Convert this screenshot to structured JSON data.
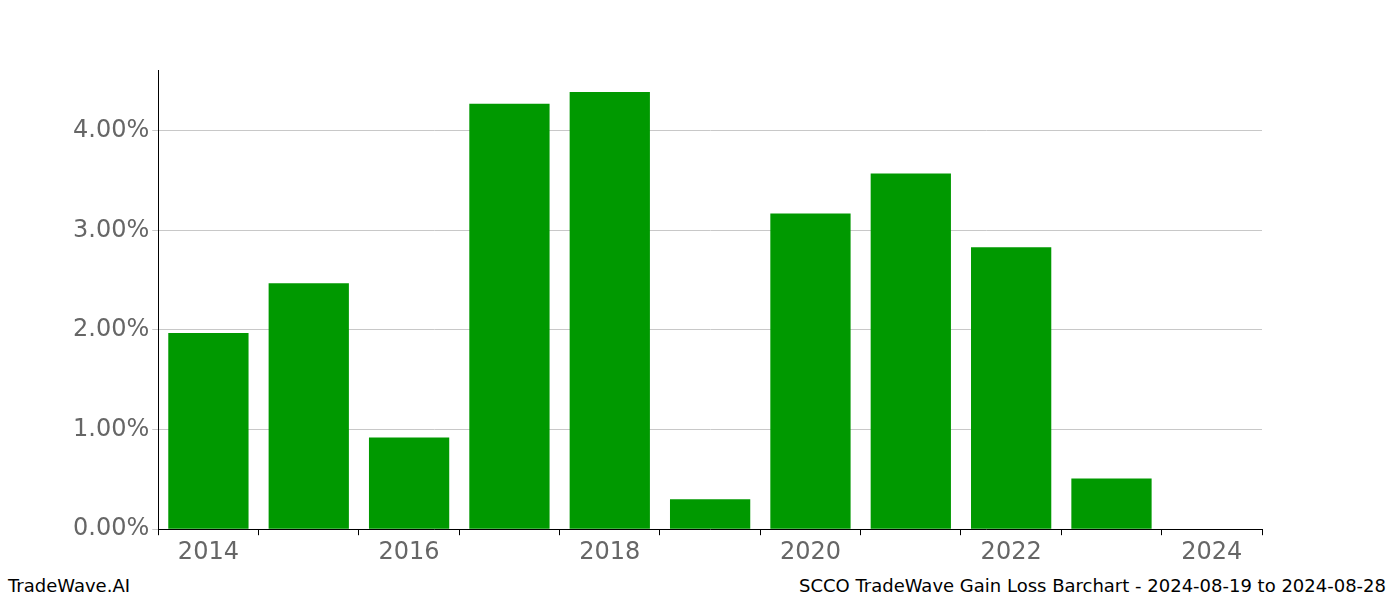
{
  "chart_data": {
    "type": "bar",
    "categories": [
      "2014",
      null,
      "2016",
      null,
      "2018",
      null,
      "2020",
      null,
      "2022",
      null,
      "2024"
    ],
    "values": [
      1.97,
      2.47,
      0.92,
      4.27,
      4.39,
      0.3,
      3.17,
      3.57,
      2.83,
      0.51,
      0
    ],
    "color": "#009900",
    "ylim": [
      0,
      4.61
    ],
    "yticks": [
      {
        "value": 0,
        "label": "0.00%"
      },
      {
        "value": 1,
        "label": "1.00%"
      },
      {
        "value": 2,
        "label": "2.00%"
      },
      {
        "value": 3,
        "label": "3.00%"
      },
      {
        "value": 4,
        "label": "4.00%"
      }
    ],
    "grid": true,
    "annotations": [
      "TradeWave.AI",
      "SCCO TradeWave Gain Loss Barchart - 2024-08-19 to 2024-08-28"
    ]
  }
}
